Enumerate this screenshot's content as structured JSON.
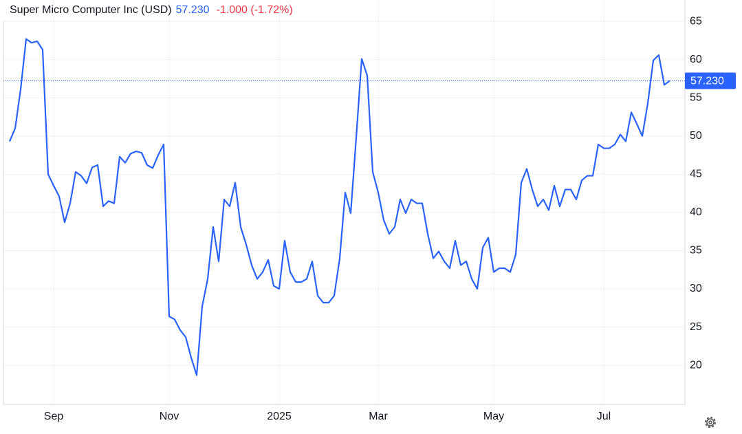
{
  "chart_data": {
    "type": "line",
    "title": "Super Micro Computer Inc (USD)",
    "last_label": "57.230",
    "change_label": "-1.000 (-1.72%)",
    "color": "#2962ff",
    "categories": [
      null,
      null,
      null,
      null,
      null,
      null,
      null,
      null,
      "Sep",
      null,
      null,
      null,
      null,
      null,
      null,
      null,
      null,
      null,
      null,
      null,
      null,
      null,
      null,
      null,
      null,
      null,
      null,
      null,
      null,
      "Nov",
      null,
      null,
      null,
      null,
      null,
      null,
      null,
      null,
      null,
      null,
      null,
      null,
      null,
      null,
      null,
      null,
      null,
      null,
      null,
      "2025",
      null,
      null,
      null,
      null,
      null,
      null,
      null,
      null,
      null,
      null,
      null,
      null,
      null,
      null,
      null,
      null,
      null,
      "Mar",
      null,
      null,
      null,
      null,
      null,
      null,
      null,
      null,
      null,
      null,
      null,
      null,
      null,
      null,
      null,
      null,
      null,
      null,
      null,
      null,
      "May",
      null,
      null,
      null,
      null,
      null,
      null,
      null,
      null,
      null,
      null,
      null,
      null,
      null,
      null,
      null,
      null,
      null,
      null,
      null,
      "Jul",
      null,
      null,
      null,
      null,
      null,
      null,
      null,
      null,
      null,
      null,
      null,
      null
    ],
    "values": [
      49.3,
      51,
      56.1,
      62.7,
      62.2,
      62.4,
      61.3,
      45,
      43.5,
      42.1,
      38.7,
      41.2,
      45.3,
      44.8,
      43.8,
      45.9,
      46.2,
      40.8,
      41.5,
      41.2,
      47.3,
      46.5,
      47.7,
      48,
      47.8,
      46.2,
      45.8,
      47.5,
      48.9,
      26.4,
      26,
      24.6,
      23.7,
      21,
      18.7,
      27.7,
      31.3,
      38.1,
      33.6,
      41.7,
      40.8,
      43.9,
      38.1,
      35.8,
      33.1,
      31.3,
      32.2,
      33.8,
      30.4,
      30,
      36.3,
      32.2,
      30.9,
      30.9,
      31.3,
      33.6,
      29.1,
      28.2,
      28.2,
      29.1,
      34,
      42.6,
      39.9,
      49.8,
      60.1,
      57.9,
      45.3,
      42.6,
      39,
      37.2,
      38.1,
      41.7,
      39.9,
      41.7,
      41.2,
      41.2,
      37.2,
      34,
      34.9,
      33.6,
      32.7,
      36.3,
      33.1,
      33.6,
      31.3,
      30,
      35.4,
      36.7,
      32.2,
      32.7,
      32.7,
      32.2,
      34.5,
      43.9,
      45.7,
      43,
      40.8,
      41.7,
      40.3,
      43.5,
      40.8,
      43,
      43,
      41.7,
      44.2,
      44.8,
      44.8,
      48.9,
      48.4,
      48.4,
      48.9,
      50.2,
      49.3,
      53.1,
      51.6,
      50,
      54.3,
      59.9,
      60.6,
      56.7,
      57.23
    ],
    "ylim": [
      14.7,
      67.8
    ],
    "yticks": [
      20,
      25,
      30,
      35,
      40,
      45,
      50,
      55,
      60,
      65
    ],
    "grid": true
  }
}
